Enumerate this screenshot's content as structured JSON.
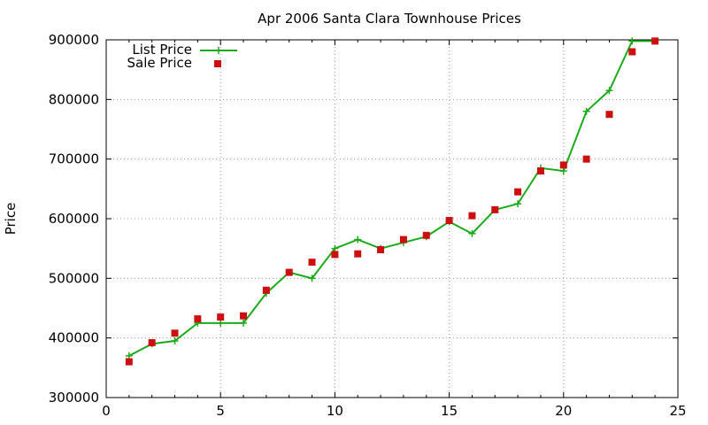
{
  "chart_data": {
    "type": "line",
    "title": "Apr 2006 Santa Clara Townhouse Prices",
    "xlabel": "",
    "ylabel": "Price",
    "xlim": [
      0,
      25
    ],
    "ylim": [
      300000,
      900000
    ],
    "xticks": [
      0,
      5,
      10,
      15,
      20,
      25
    ],
    "yticks": [
      300000,
      400000,
      500000,
      600000,
      700000,
      800000,
      900000
    ],
    "grid": true,
    "legend_position": "top-left",
    "colors": {
      "list": "#1aaa1a",
      "sale": "#cc1010"
    },
    "series": [
      {
        "name": "List Price",
        "style": "line-cross",
        "x": [
          1,
          2,
          3,
          4,
          5,
          6,
          7,
          8,
          9,
          10,
          11,
          12,
          13,
          14,
          15,
          16,
          17,
          18,
          19,
          20,
          21,
          22,
          23,
          24
        ],
        "values": [
          370000,
          390000,
          395000,
          425000,
          425000,
          425000,
          475000,
          510000,
          500000,
          550000,
          565000,
          550000,
          560000,
          570000,
          595000,
          575000,
          615000,
          625000,
          685000,
          680000,
          780000,
          815000,
          898000,
          898000
        ]
      },
      {
        "name": "Sale Price",
        "style": "square-markers",
        "x": [
          1,
          2,
          3,
          4,
          5,
          6,
          7,
          8,
          9,
          10,
          11,
          12,
          13,
          14,
          15,
          16,
          17,
          18,
          19,
          20,
          21,
          22,
          23,
          24
        ],
        "values": [
          360000,
          392000,
          408000,
          432000,
          435000,
          437000,
          480000,
          510000,
          527000,
          540000,
          541000,
          548000,
          565000,
          572000,
          597000,
          605000,
          615000,
          645000,
          680000,
          690000,
          700000,
          775000,
          880000,
          898000
        ]
      }
    ]
  }
}
